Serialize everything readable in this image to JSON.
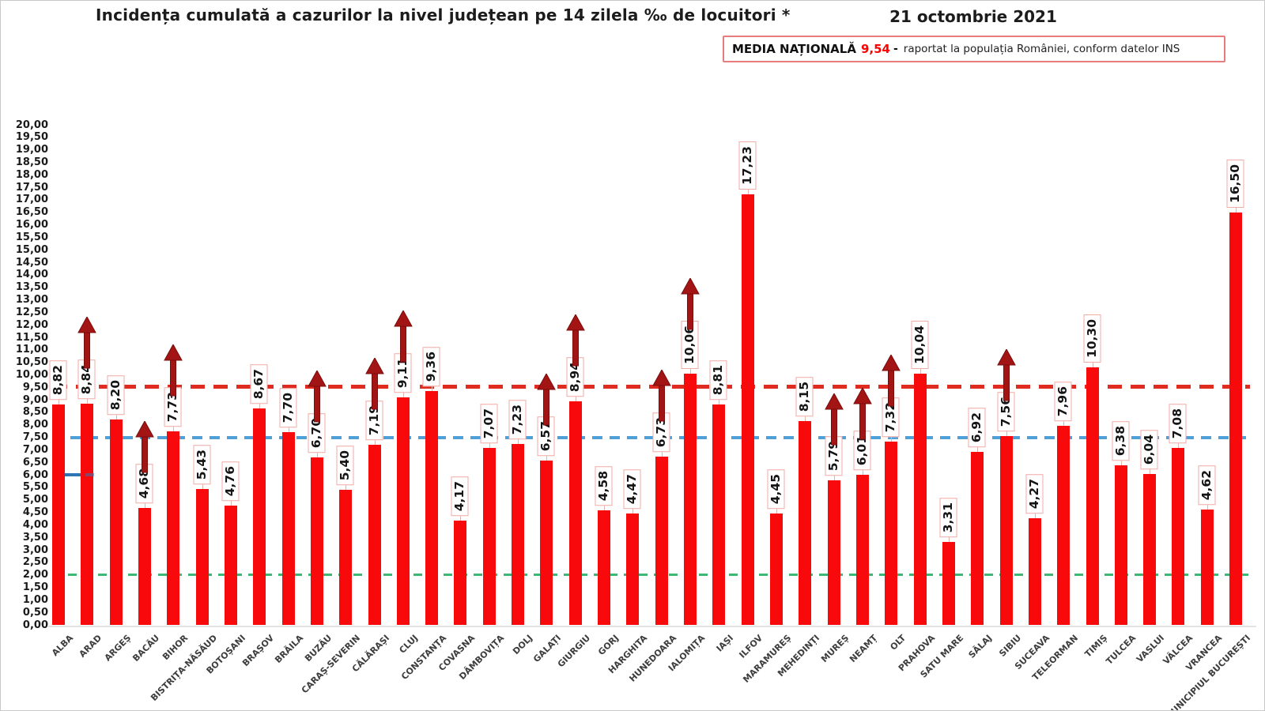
{
  "header": {
    "title": "Incidența cumulată a cazurilor la nivel județean pe 14 zilela ‰ de locuitori *",
    "date": "21 octombrie 2021"
  },
  "legend": {
    "label": "MEDIA NAȚIONALĂ",
    "value": "9,54",
    "separator": "-",
    "note": "raportat la populația României, conform datelor INS"
  },
  "chart_data": {
    "type": "bar",
    "title": "Incidența cumulată a cazurilor la nivel județean pe 14 zilela ‰ de locuitori *",
    "date": "21 octombrie 2021",
    "xlabel": "",
    "ylabel": "",
    "ylim": [
      0,
      20
    ],
    "ytick_step": 0.5,
    "grid": false,
    "bar_color": "#f8090b",
    "value_box_border": "#f2a9a4",
    "arrow_color": "#a31414",
    "national_average": 9.54,
    "categories": [
      "ALBA",
      "ARAD",
      "ARGEȘ",
      "BACĂU",
      "BIHOR",
      "BISTRIȚA-NĂSĂUD",
      "BOTOȘANI",
      "BRAȘOV",
      "BRĂILA",
      "BUZĂU",
      "CARAȘ-SEVERIN",
      "CĂLĂRAȘI",
      "CLUJ",
      "CONSTANȚA",
      "COVASNA",
      "DÂMBOVIȚA",
      "DOLJ",
      "GALAȚI",
      "GIURGIU",
      "GORJ",
      "HARGHITA",
      "HUNEDOARA",
      "IALOMIȚA",
      "IAȘI",
      "ILFOV",
      "MARAMUREȘ",
      "MEHEDINȚI",
      "MUREȘ",
      "NEAMȚ",
      "OLT",
      "PRAHOVA",
      "SATU MARE",
      "SĂLAJ",
      "SIBIU",
      "SUCEAVA",
      "TELEORMAN",
      "TIMIȘ",
      "TULCEA",
      "VASLUI",
      "VÂLCEA",
      "VRANCEA",
      "MUNICIPIUL BUCUREȘTI"
    ],
    "values": [
      8.82,
      8.84,
      8.2,
      4.68,
      7.73,
      5.43,
      4.76,
      8.67,
      7.7,
      6.7,
      5.4,
      7.19,
      9.11,
      9.36,
      4.17,
      7.07,
      7.23,
      6.57,
      8.94,
      4.58,
      4.47,
      6.73,
      10.06,
      8.81,
      17.23,
      4.45,
      8.15,
      5.79,
      6.01,
      7.32,
      10.04,
      3.31,
      6.92,
      7.56,
      4.27,
      7.96,
      10.3,
      6.38,
      6.04,
      7.08,
      4.62,
      16.5
    ],
    "labels": [
      "8,82",
      "8,84",
      "8,20",
      "4,68",
      "7,73",
      "5,43",
      "4,76",
      "8,67",
      "7,70",
      "6,70",
      "5,40",
      "7,19",
      "9,11",
      "9,36",
      "4,17",
      "7,07",
      "7,23",
      "6,57",
      "8,94",
      "4,58",
      "4,47",
      "6,73",
      "10,06",
      "8,81",
      "17,23",
      "4,45",
      "8,15",
      "5,79",
      "6,01",
      "7,32",
      "10,04",
      "3,31",
      "6,92",
      "7,56",
      "4,27",
      "7,96",
      "10,30",
      "6,38",
      "6,04",
      "7,08",
      "4,62",
      "16,50"
    ],
    "arrows_up": [
      false,
      true,
      false,
      true,
      true,
      false,
      false,
      false,
      false,
      true,
      false,
      true,
      true,
      false,
      false,
      false,
      false,
      true,
      true,
      false,
      false,
      true,
      true,
      false,
      false,
      false,
      false,
      true,
      true,
      true,
      false,
      false,
      false,
      true,
      false,
      false,
      false,
      false,
      false,
      false,
      false,
      false
    ],
    "reference_lines": [
      {
        "name": "media-nationala",
        "value": 9.54,
        "color": "#e02b20",
        "style": "dashed",
        "dash": [
          18,
          11
        ],
        "thickness": 5
      },
      {
        "name": "prag-7-50",
        "value": 7.5,
        "color": "#4f9fd9",
        "style": "dashed",
        "dash": [
          13,
          9
        ],
        "thickness": 4
      },
      {
        "name": "prag-2-00",
        "value": 2.0,
        "color": "#3bb873",
        "style": "dashed",
        "dash": [
          11,
          8
        ],
        "thickness": 3
      },
      {
        "name": "prag-6-00-partial",
        "value": 6.0,
        "color": "#2e75b6",
        "style": "solid-partial",
        "thickness": 4,
        "segments": [
          [
            80,
            103
          ],
          [
            107,
            118
          ]
        ]
      }
    ],
    "legend_position": "top-right"
  }
}
